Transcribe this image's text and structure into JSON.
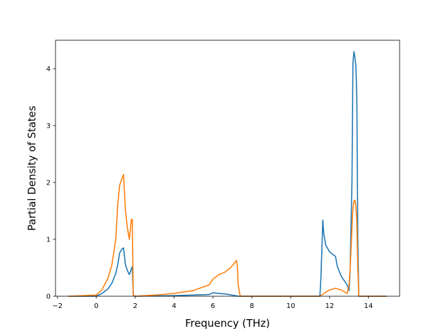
{
  "chart_data": {
    "type": "line",
    "title": "",
    "xlabel": "Frequency (THz)",
    "ylabel": "Partial Density of States",
    "xlim": [
      -2.1,
      15.6
    ],
    "ylim": [
      0,
      4.5
    ],
    "xticks": [
      -2,
      0,
      2,
      4,
      6,
      8,
      10,
      12,
      14
    ],
    "yticks": [
      0,
      1,
      2,
      3,
      4
    ],
    "xtick_labels": [
      "−2",
      "0",
      "2",
      "4",
      "6",
      "8",
      "10",
      "12",
      "14"
    ],
    "ytick_labels": [
      "0",
      "1",
      "2",
      "3",
      "4"
    ],
    "grid": false,
    "legend": null,
    "series": [
      {
        "color": "#1f77b4",
        "x": [
          -1.4,
          0.0,
          0.3,
          0.6,
          0.8,
          1.0,
          1.1,
          1.2,
          1.3,
          1.4,
          1.5,
          1.6,
          1.7,
          1.8,
          1.85,
          1.9,
          2.0,
          4.0,
          5.8,
          6.0,
          6.3,
          6.6,
          7.0,
          7.3,
          7.4,
          11.5,
          11.55,
          11.6,
          11.65,
          11.7,
          11.8,
          12.0,
          12.3,
          12.4,
          12.6,
          12.9,
          13.0,
          13.05,
          13.1,
          13.15,
          13.2,
          13.25,
          13.3,
          13.35,
          13.4,
          13.45,
          13.5,
          14.9
        ],
        "y": [
          0.0,
          0.0,
          0.05,
          0.13,
          0.23,
          0.4,
          0.55,
          0.76,
          0.82,
          0.85,
          0.55,
          0.45,
          0.38,
          0.48,
          0.52,
          0.02,
          0.0,
          0.01,
          0.03,
          0.06,
          0.05,
          0.04,
          0.02,
          0.0,
          0.0,
          0.0,
          0.3,
          0.8,
          1.34,
          1.1,
          0.9,
          0.78,
          0.7,
          0.52,
          0.35,
          0.2,
          0.1,
          0.4,
          1.2,
          2.0,
          4.1,
          4.3,
          4.2,
          4.05,
          3.5,
          1.0,
          0.0,
          0.0
        ]
      },
      {
        "color": "#ff7f0e",
        "x": [
          -1.4,
          0.0,
          0.3,
          0.6,
          0.8,
          1.0,
          1.1,
          1.2,
          1.3,
          1.4,
          1.5,
          1.6,
          1.7,
          1.8,
          1.85,
          1.9,
          2.0,
          3.0,
          4.0,
          5.0,
          5.8,
          6.0,
          6.3,
          6.6,
          6.9,
          7.1,
          7.2,
          7.25,
          7.3,
          7.4,
          11.5,
          11.8,
          12.0,
          12.3,
          12.6,
          12.9,
          13.0,
          13.05,
          13.1,
          13.15,
          13.2,
          13.25,
          13.3,
          13.35,
          13.4,
          13.45,
          13.5,
          14.9
        ],
        "y": [
          0.0,
          0.02,
          0.12,
          0.32,
          0.55,
          1.0,
          1.6,
          1.95,
          2.05,
          2.14,
          1.5,
          1.2,
          1.0,
          1.35,
          1.35,
          0.02,
          0.0,
          0.02,
          0.05,
          0.1,
          0.2,
          0.3,
          0.38,
          0.42,
          0.5,
          0.58,
          0.63,
          0.55,
          0.2,
          0.0,
          0.0,
          0.07,
          0.11,
          0.14,
          0.11,
          0.05,
          0.2,
          0.45,
          0.8,
          1.2,
          1.55,
          1.67,
          1.69,
          1.6,
          1.3,
          0.5,
          0.0,
          0.0
        ]
      }
    ]
  }
}
